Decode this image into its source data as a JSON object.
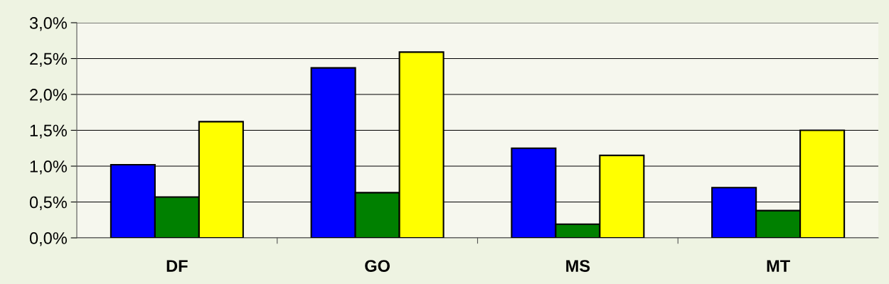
{
  "chart_data": {
    "type": "bar",
    "categories": [
      "DF",
      "GO",
      "MS",
      "MT"
    ],
    "series": [
      {
        "color": "#0000ff",
        "values": [
          1.02,
          2.37,
          1.25,
          0.7
        ]
      },
      {
        "color": "#008000",
        "values": [
          0.57,
          0.63,
          0.19,
          0.38
        ]
      },
      {
        "color": "#ffff00",
        "values": [
          1.62,
          2.59,
          1.15,
          1.5
        ]
      }
    ],
    "ylim": [
      0,
      3.0
    ],
    "yticks": [
      {
        "value": 0,
        "label": "0,0%"
      },
      {
        "value": 0.5,
        "label": "0,5%"
      },
      {
        "value": 1.0,
        "label": "1,0%"
      },
      {
        "value": 1.5,
        "label": "1,5%"
      },
      {
        "value": 2.0,
        "label": "2,0%"
      },
      {
        "value": 2.5,
        "label": "2,5%"
      },
      {
        "value": 3.0,
        "label": "3,0%"
      }
    ],
    "grid": "y"
  }
}
